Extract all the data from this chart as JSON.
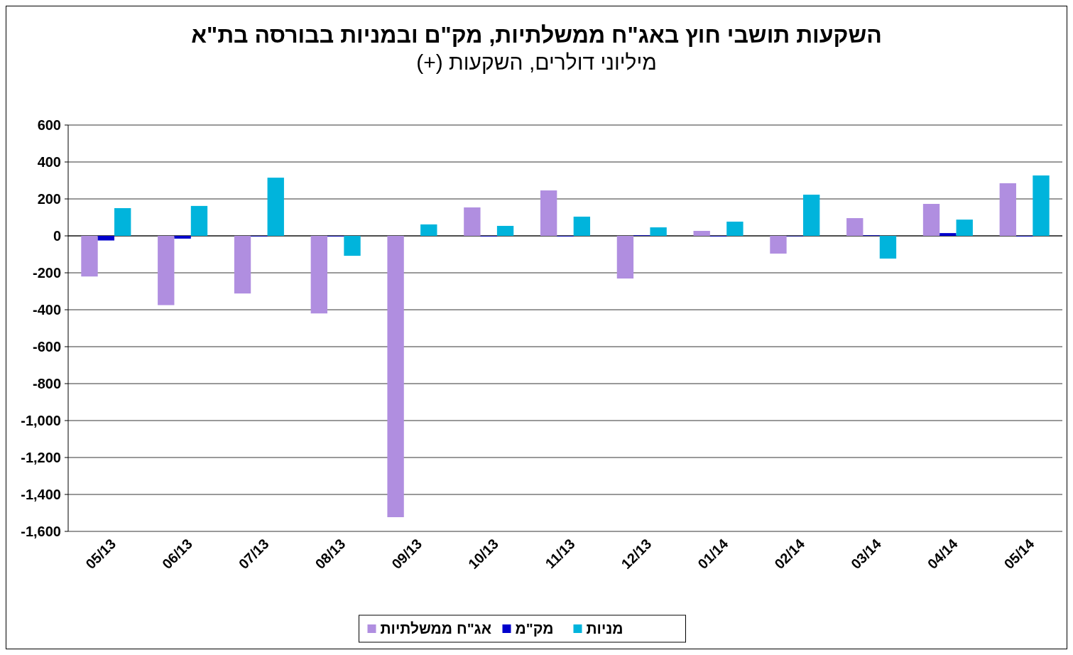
{
  "chart_data": {
    "type": "bar",
    "title": "השקעות תושבי חוץ באג\"ח ממשלתיות, מק\"ם ובמניות בבורסה בת\"א",
    "subtitle": "מיליוני דולרים, השקעות (+)",
    "categories": [
      "05/13",
      "06/13",
      "07/13",
      "08/13",
      "09/13",
      "10/13",
      "11/13",
      "12/13",
      "01/14",
      "02/14",
      "03/14",
      "04/14",
      "05/14"
    ],
    "series": [
      {
        "name": "אג\"ח ממשלתיות",
        "color": "#b08ee0",
        "values": [
          -220,
          -375,
          -312,
          -420,
          -1523,
          154,
          246,
          -231,
          27,
          -96,
          96,
          173,
          285
        ]
      },
      {
        "name": "מק\"מ",
        "color": "#0000cc",
        "values": [
          -25,
          -15,
          -3,
          -3,
          0,
          -3,
          -3,
          3,
          -3,
          -2,
          3,
          15,
          -3
        ]
      },
      {
        "name": "מניות",
        "color": "#00b4dc",
        "values": [
          150,
          162,
          315,
          -108,
          62,
          54,
          104,
          46,
          77,
          223,
          -123,
          88,
          327
        ]
      }
    ],
    "ylim": [
      -1600,
      600
    ],
    "yticks": [
      {
        "value": -1600,
        "label": "-1,600"
      },
      {
        "value": -1400,
        "label": "-1,400"
      },
      {
        "value": -1200,
        "label": "-1,200"
      },
      {
        "value": -1000,
        "label": "-1,000"
      },
      -800,
      -600,
      -400,
      -200,
      0,
      200,
      400,
      600
    ],
    "grid": "y",
    "legend": "bottom"
  }
}
